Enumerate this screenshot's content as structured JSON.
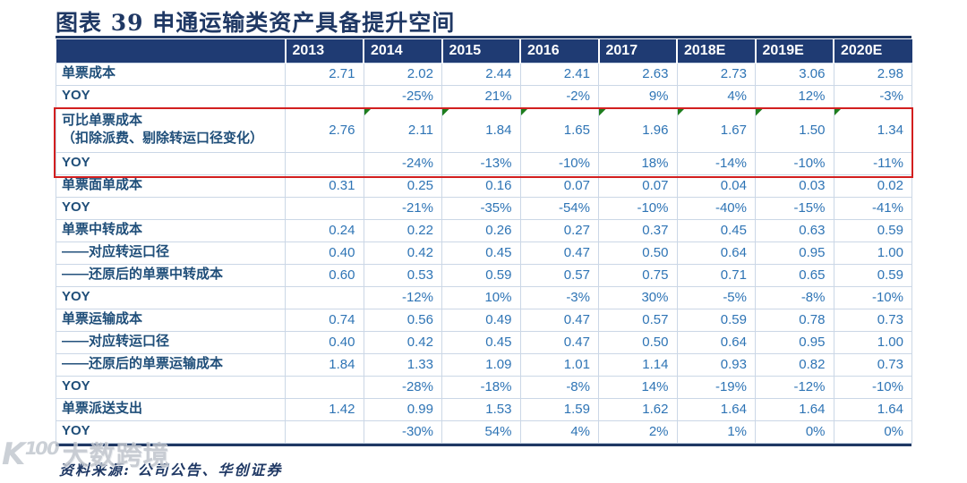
{
  "page": {
    "title": "图表 39 申通运输类资产具备提升空间",
    "source": "资料来源: 公司公告、华创证券",
    "watermark": {
      "logo": "K¹⁰⁰",
      "text": "大数跨境"
    }
  },
  "colors": {
    "navy": "#1F3864",
    "header_bg": "#1F3B73",
    "label_text": "#1F4E79",
    "value_text": "#2E74B5",
    "gridline": "#CBD7E6",
    "highlight_red": "#D21F1F",
    "flag_green": "#1E7D1E"
  },
  "chart_data": {
    "type": "table",
    "title": "申通运输类资产具备提升空间",
    "columns": [
      "",
      "2013",
      "2014",
      "2015",
      "2016",
      "2017",
      "2018E",
      "2019E",
      "2020E"
    ],
    "rows": [
      {
        "label": "单票成本",
        "values": [
          "2.71",
          "2.02",
          "2.44",
          "2.41",
          "2.63",
          "2.73",
          "3.06",
          "2.98"
        ]
      },
      {
        "label": "YOY",
        "values": [
          "",
          "-25%",
          "21%",
          "-2%",
          "9%",
          "4%",
          "12%",
          "-3%"
        ]
      },
      {
        "label": "可比单票成本",
        "sublabel": "（扣除派费、剔除转运口径变化）",
        "values": [
          "2.76",
          "2.11",
          "1.84",
          "1.65",
          "1.96",
          "1.67",
          "1.50",
          "1.34"
        ],
        "highlight": "top",
        "flags": [
          false,
          true,
          true,
          true,
          true,
          true,
          true,
          true
        ]
      },
      {
        "label": "YOY",
        "values": [
          "",
          "-24%",
          "-13%",
          "-10%",
          "18%",
          "-14%",
          "-10%",
          "-11%"
        ],
        "highlight": "bottom"
      },
      {
        "label": "单票面单成本",
        "values": [
          "0.31",
          "0.25",
          "0.16",
          "0.07",
          "0.07",
          "0.04",
          "0.03",
          "0.02"
        ]
      },
      {
        "label": "YOY",
        "values": [
          "",
          "-21%",
          "-35%",
          "-54%",
          "-10%",
          "-40%",
          "-15%",
          "-41%"
        ]
      },
      {
        "label": "单票中转成本",
        "values": [
          "0.24",
          "0.22",
          "0.26",
          "0.27",
          "0.37",
          "0.45",
          "0.63",
          "0.59"
        ]
      },
      {
        "label": "——对应转运口径",
        "values": [
          "0.40",
          "0.42",
          "0.45",
          "0.47",
          "0.50",
          "0.64",
          "0.95",
          "1.00"
        ]
      },
      {
        "label": "——还原后的单票中转成本",
        "values": [
          "0.60",
          "0.53",
          "0.59",
          "0.57",
          "0.75",
          "0.71",
          "0.65",
          "0.59"
        ]
      },
      {
        "label": "YOY",
        "values": [
          "",
          "-12%",
          "10%",
          "-3%",
          "30%",
          "-5%",
          "-8%",
          "-10%"
        ]
      },
      {
        "label": "单票运输成本",
        "values": [
          "0.74",
          "0.56",
          "0.49",
          "0.47",
          "0.57",
          "0.59",
          "0.78",
          "0.73"
        ]
      },
      {
        "label": "——对应转运口径",
        "values": [
          "0.40",
          "0.42",
          "0.45",
          "0.47",
          "0.50",
          "0.64",
          "0.95",
          "1.00"
        ]
      },
      {
        "label": "——还原后的单票运输成本",
        "values": [
          "1.84",
          "1.33",
          "1.09",
          "1.01",
          "1.14",
          "0.93",
          "0.82",
          "0.73"
        ]
      },
      {
        "label": "YOY",
        "values": [
          "",
          "-28%",
          "-18%",
          "-8%",
          "14%",
          "-19%",
          "-12%",
          "-10%"
        ]
      },
      {
        "label": "单票派送支出",
        "values": [
          "1.42",
          "0.99",
          "1.53",
          "1.59",
          "1.62",
          "1.64",
          "1.64",
          "1.64"
        ]
      },
      {
        "label": "YOY",
        "values": [
          "",
          "-30%",
          "54%",
          "4%",
          "2%",
          "1%",
          "0%",
          "0%"
        ]
      }
    ]
  }
}
